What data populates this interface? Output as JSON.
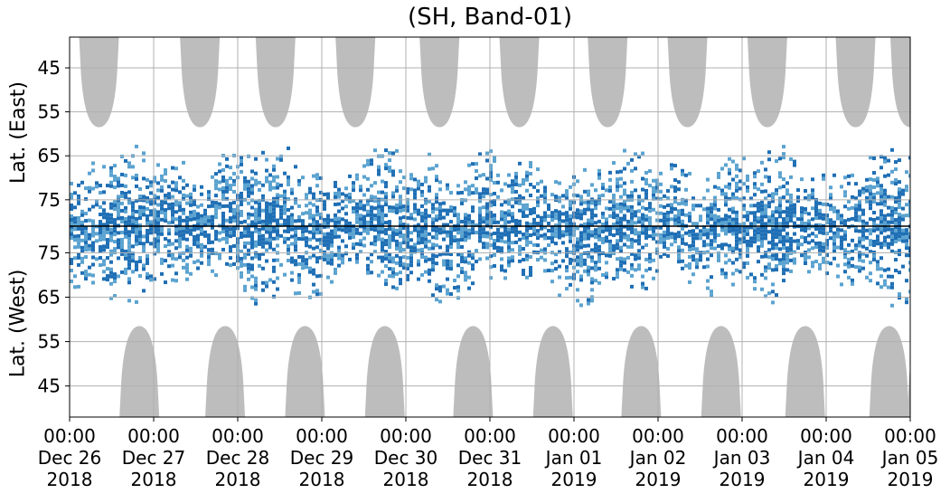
{
  "chart_data": {
    "type": "heatmap",
    "title": "(SH, Band-01)",
    "ylabel_top": "Lat. (East)",
    "ylabel_bottom": "Lat. (West)",
    "y_ticks_east": [
      45,
      55,
      65,
      75
    ],
    "y_ticks_west": [
      75,
      65,
      55,
      45
    ],
    "x_ticks": [
      {
        "time": "00:00",
        "date": "Dec 26",
        "year": "2018"
      },
      {
        "time": "00:00",
        "date": "Dec 27",
        "year": "2018"
      },
      {
        "time": "00:00",
        "date": "Dec 28",
        "year": "2018"
      },
      {
        "time": "00:00",
        "date": "Dec 29",
        "year": "2018"
      },
      {
        "time": "00:00",
        "date": "Dec 30",
        "year": "2018"
      },
      {
        "time": "00:00",
        "date": "Dec 31",
        "year": "2018"
      },
      {
        "time": "00:00",
        "date": "Jan 01",
        "year": "2019"
      },
      {
        "time": "00:00",
        "date": "Jan 02",
        "year": "2019"
      },
      {
        "time": "00:00",
        "date": "Jan 03",
        "year": "2019"
      },
      {
        "time": "00:00",
        "date": "Jan 04",
        "year": "2019"
      },
      {
        "time": "00:00",
        "date": "Jan 05",
        "year": "2019"
      }
    ],
    "x_range": [
      "2018-12-26 00:00",
      "2019-01-05 00:00"
    ],
    "y_range_east": [
      81,
      38
    ],
    "y_range_west": [
      81,
      38
    ],
    "grid": true,
    "colors": {
      "strong": "#1f6fb5",
      "weak": "#5ba3d0",
      "no_data": "#bdbdbd",
      "grid": "#b0b0b0",
      "divider": "#000000"
    },
    "grey_east_centers_days": [
      0.35,
      1.55,
      2.45,
      3.4,
      4.4,
      5.35,
      6.4,
      7.35,
      8.3,
      9.35,
      10.0
    ],
    "grey_west_centers_days": [
      0.83,
      1.85,
      2.8,
      3.75,
      4.8,
      5.75,
      6.8,
      7.75,
      8.75,
      9.75,
      10.2
    ]
  }
}
